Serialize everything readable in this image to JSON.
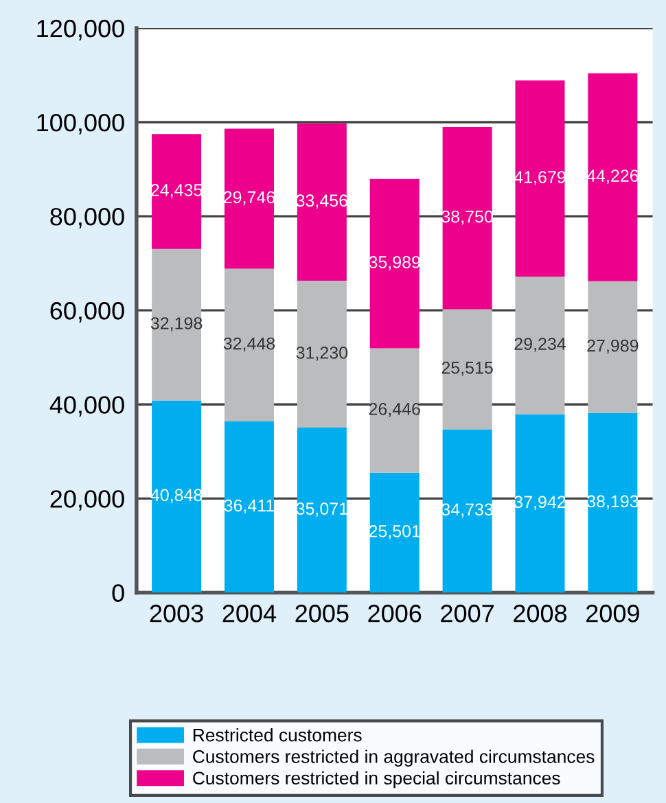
{
  "chart_data": {
    "type": "bar",
    "stacked": true,
    "categories": [
      "2003",
      "2004",
      "2005",
      "2006",
      "2007",
      "2008",
      "2009"
    ],
    "series": [
      {
        "name": "Restricted customers",
        "color": "#00aeef",
        "values": [
          40848,
          36411,
          35071,
          25501,
          34733,
          37942,
          38193
        ],
        "value_labels": [
          "40,848",
          "36,411",
          "35,071",
          "25,501",
          "34,733",
          "37,942",
          "38,193"
        ]
      },
      {
        "name": "Customers restricted in aggravated circumstances",
        "color": "#bbbcbe",
        "values": [
          32198,
          32448,
          31230,
          26446,
          25515,
          29234,
          27989
        ],
        "value_labels": [
          "32,198",
          "32,448",
          "31,230",
          "26,446",
          "25,515",
          "29,234",
          "27,989"
        ]
      },
      {
        "name": "Customers restricted in special circumstances",
        "color": "#ec008c",
        "values": [
          24435,
          29746,
          33456,
          35989,
          38750,
          41679,
          44226
        ],
        "value_labels": [
          "24,435",
          "29,746",
          "33,456",
          "35,989",
          "38,750",
          "41,679",
          "44,226"
        ]
      }
    ],
    "ylim": [
      0,
      120000
    ],
    "yticks": [
      {
        "value": 0,
        "label": "0"
      },
      {
        "value": 20000,
        "label": "20,000"
      },
      {
        "value": 40000,
        "label": "40,000"
      },
      {
        "value": 60000,
        "label": "60,000"
      },
      {
        "value": 80000,
        "label": "80,000"
      },
      {
        "value": 100000,
        "label": "100,000"
      },
      {
        "value": 120000,
        "label": "120,000"
      }
    ],
    "grid": "y",
    "legend": "bottom"
  }
}
